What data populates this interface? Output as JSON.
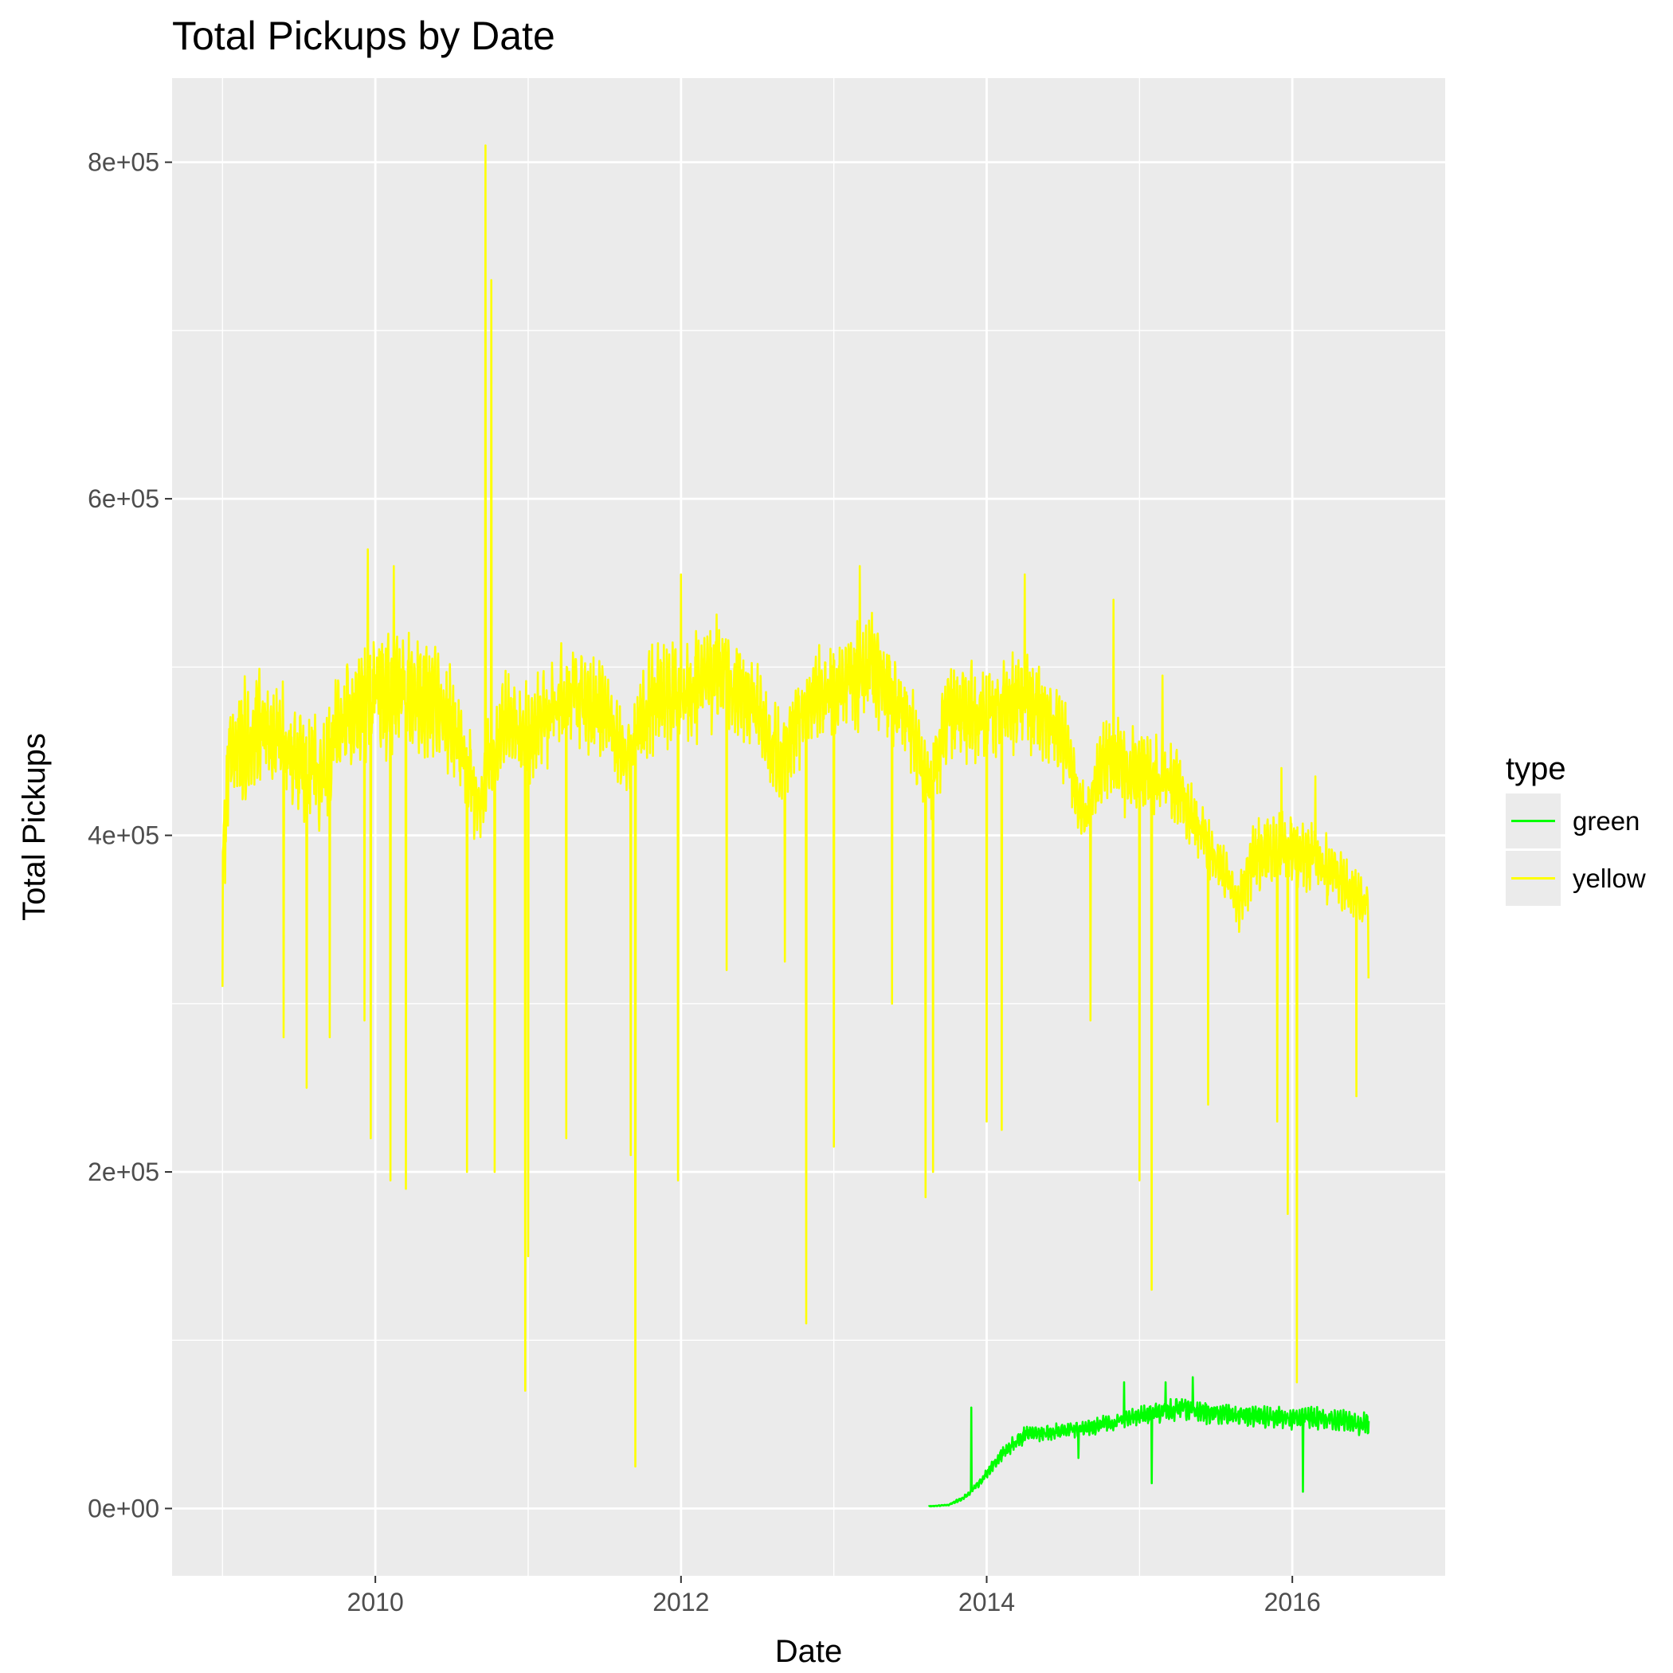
{
  "chart_data": {
    "type": "line",
    "title": "Total Pickups by Date",
    "xlabel": "Date",
    "ylabel": "Total Pickups",
    "x_ticks": [
      "2010",
      "2012",
      "2014",
      "2016"
    ],
    "x_tick_values": [
      2010,
      2012,
      2014,
      2016
    ],
    "y_ticks": [
      "0e+00",
      "2e+05",
      "4e+05",
      "6e+05",
      "8e+05"
    ],
    "y_tick_values": [
      0,
      200000,
      400000,
      600000,
      800000
    ],
    "xlim": [
      2008.67,
      2017.0
    ],
    "ylim": [
      -40000,
      850000
    ],
    "grid": true,
    "legend_position": "right",
    "legend_title": "type",
    "series": [
      {
        "name": "green",
        "color": "#00ff00",
        "start": 2013.62,
        "end": 2016.5,
        "envelope": [
          [
            2013.62,
            1000,
            1500
          ],
          [
            2013.75,
            1500,
            2500
          ],
          [
            2013.85,
            4000,
            8000
          ],
          [
            2013.95,
            10000,
            18000
          ],
          [
            2014.0,
            15000,
            25000
          ],
          [
            2014.1,
            25000,
            38000
          ],
          [
            2014.25,
            35000,
            50000
          ],
          [
            2014.5,
            38000,
            52000
          ],
          [
            2014.75,
            40000,
            56000
          ],
          [
            2015.0,
            45000,
            62000
          ],
          [
            2015.25,
            47000,
            68000
          ],
          [
            2015.5,
            44000,
            65000
          ],
          [
            2015.75,
            43000,
            63000
          ],
          [
            2016.0,
            42000,
            62000
          ],
          [
            2016.25,
            41000,
            62000
          ],
          [
            2016.5,
            38000,
            58000
          ]
        ],
        "spikes": [
          [
            2013.9,
            60000
          ],
          [
            2015.17,
            75000
          ],
          [
            2015.35,
            78000
          ],
          [
            2014.9,
            75000
          ]
        ],
        "dips": [
          [
            2015.08,
            15000
          ],
          [
            2016.07,
            10000
          ],
          [
            2014.6,
            30000
          ]
        ]
      },
      {
        "name": "yellow",
        "color": "#ffff00",
        "start": 2009.0,
        "end": 2016.5,
        "envelope": [
          [
            2009.0,
            330000,
            420000
          ],
          [
            2009.05,
            380000,
            500000
          ],
          [
            2009.25,
            400000,
            510000
          ],
          [
            2009.5,
            385000,
            490000
          ],
          [
            2009.65,
            370000,
            475000
          ],
          [
            2009.75,
            400000,
            510000
          ],
          [
            2010.0,
            420000,
            530000
          ],
          [
            2010.25,
            415000,
            535000
          ],
          [
            2010.5,
            400000,
            510000
          ],
          [
            2010.68,
            370000,
            460000
          ],
          [
            2010.85,
            420000,
            505000
          ],
          [
            2011.0,
            400000,
            500000
          ],
          [
            2011.25,
            430000,
            525000
          ],
          [
            2011.5,
            420000,
            510000
          ],
          [
            2011.65,
            405000,
            470000
          ],
          [
            2011.8,
            420000,
            520000
          ],
          [
            2012.0,
            425000,
            525000
          ],
          [
            2012.25,
            440000,
            540000
          ],
          [
            2012.5,
            420000,
            510000
          ],
          [
            2012.65,
            390000,
            480000
          ],
          [
            2012.85,
            430000,
            520000
          ],
          [
            2013.0,
            430000,
            525000
          ],
          [
            2013.25,
            440000,
            540000
          ],
          [
            2013.5,
            420000,
            500000
          ],
          [
            2013.62,
            385000,
            460000
          ],
          [
            2013.75,
            420000,
            510000
          ],
          [
            2014.0,
            420000,
            510000
          ],
          [
            2014.25,
            430000,
            520000
          ],
          [
            2014.5,
            410000,
            490000
          ],
          [
            2014.65,
            375000,
            430000
          ],
          [
            2014.75,
            400000,
            480000
          ],
          [
            2015.0,
            385000,
            470000
          ],
          [
            2015.25,
            385000,
            460000
          ],
          [
            2015.5,
            355000,
            410000
          ],
          [
            2015.65,
            330000,
            380000
          ],
          [
            2015.75,
            345000,
            415000
          ],
          [
            2016.0,
            355000,
            420000
          ],
          [
            2016.25,
            340000,
            405000
          ],
          [
            2016.5,
            335000,
            375000
          ]
        ],
        "spikes": [
          [
            2010.72,
            810000
          ],
          [
            2010.76,
            730000
          ],
          [
            2009.95,
            570000
          ],
          [
            2010.12,
            560000
          ],
          [
            2013.17,
            560000
          ],
          [
            2012.0,
            555000
          ],
          [
            2014.25,
            555000
          ],
          [
            2014.83,
            540000
          ],
          [
            2015.15,
            495000
          ],
          [
            2015.93,
            440000
          ],
          [
            2016.15,
            435000
          ],
          [
            2011.25,
            540000
          ]
        ],
        "dips": [
          [
            2009.0,
            310000
          ],
          [
            2009.4,
            280000
          ],
          [
            2009.55,
            250000
          ],
          [
            2009.7,
            280000
          ],
          [
            2009.93,
            290000
          ],
          [
            2009.97,
            220000
          ],
          [
            2010.1,
            195000
          ],
          [
            2010.2,
            190000
          ],
          [
            2010.6,
            200000
          ],
          [
            2010.78,
            200000
          ],
          [
            2010.98,
            70000
          ],
          [
            2011.0,
            150000
          ],
          [
            2011.25,
            220000
          ],
          [
            2011.67,
            210000
          ],
          [
            2011.7,
            25000
          ],
          [
            2011.98,
            195000
          ],
          [
            2012.3,
            320000
          ],
          [
            2012.68,
            325000
          ],
          [
            2012.82,
            110000
          ],
          [
            2013.0,
            215000
          ],
          [
            2013.38,
            300000
          ],
          [
            2013.6,
            185000
          ],
          [
            2013.65,
            200000
          ],
          [
            2014.0,
            230000
          ],
          [
            2014.1,
            225000
          ],
          [
            2014.68,
            290000
          ],
          [
            2015.0,
            195000
          ],
          [
            2015.08,
            130000
          ],
          [
            2015.45,
            240000
          ],
          [
            2015.9,
            230000
          ],
          [
            2015.97,
            175000
          ],
          [
            2016.03,
            75000
          ],
          [
            2016.42,
            245000
          ],
          [
            2016.5,
            315000
          ]
        ]
      }
    ]
  }
}
